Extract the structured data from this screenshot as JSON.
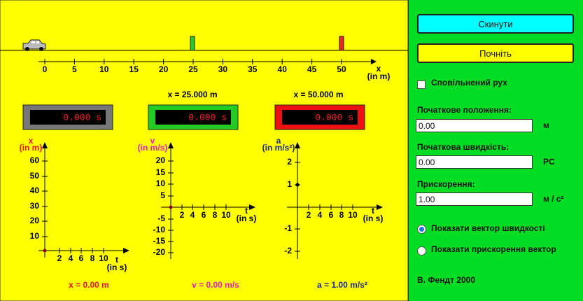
{
  "simulation": {
    "ruler": {
      "ticks": [
        "0",
        "5",
        "10",
        "15",
        "20",
        "25",
        "30",
        "35",
        "40",
        "45",
        "50"
      ],
      "axis_label": "x",
      "unit": "(in m)"
    },
    "markers": [
      "x = 25.000 m",
      "x = 50.000 m"
    ],
    "clocks": [
      "0.000 s",
      "0.000 s",
      "0.000 s"
    ],
    "graphs": [
      {
        "label": "x",
        "unit": "(in m)",
        "yticks": [
          "10",
          "20",
          "30",
          "40",
          "50",
          "60"
        ],
        "xticks": [
          "2",
          "4",
          "6",
          "8",
          "10"
        ],
        "t_label": "t",
        "t_unit": "(in s)",
        "readout": "x = 0.00 m"
      },
      {
        "label": "v",
        "unit": "(in m/s)",
        "yticks": [
          "20",
          "15",
          "10",
          "5",
          "-5",
          "-10",
          "-15",
          "-20"
        ],
        "xticks": [
          "2",
          "4",
          "6",
          "8",
          "10"
        ],
        "t_label": "t",
        "t_unit": "(in s)",
        "readout": "v = 0.00 m/s"
      },
      {
        "label": "a",
        "unit": "(in m/s²)",
        "yticks": [
          "2",
          "1",
          "-1",
          "-2"
        ],
        "xticks": [
          "2",
          "4",
          "6",
          "8",
          "10"
        ],
        "t_label": "t",
        "t_unit": "(in s)",
        "readout": "a = 1.00 m/s²"
      }
    ]
  },
  "controls": {
    "reset_button": "Скинути",
    "start_button": "Почніть",
    "slow_motion": "Сповільнений рух",
    "fields": [
      {
        "label": "Початкове положення:",
        "value": "0.00",
        "unit": "м"
      },
      {
        "label": "Початкова швидкість:",
        "value": "0.00",
        "unit": "PC"
      },
      {
        "label": "Прискорення:",
        "value": "1.00",
        "unit": "м / с²"
      }
    ],
    "radios": [
      "Показати вектор швидкості",
      "Показати прискорення вектор"
    ],
    "author": "В. Фендт 2000"
  }
}
